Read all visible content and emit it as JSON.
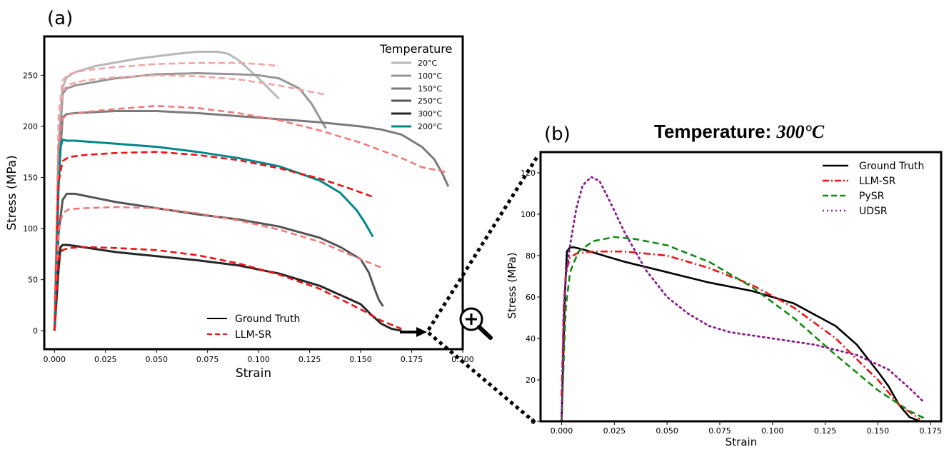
{
  "figure": {
    "panel_a_label": "(a)",
    "panel_b_label": "(b)",
    "panel_b_title_prefix": "Temperature: ",
    "panel_b_title_value": "300°C"
  },
  "colors": {
    "gt": [
      "#b8b8b8",
      "#969696",
      "#7a7a7a",
      "#555555",
      "#262626",
      "#00868b"
    ],
    "llm_light": "#f4a3a3",
    "llm_mid": "#f07a7a",
    "llm_strong": "#ee1111",
    "b_gt": "#000000",
    "b_llm": "#ee1111",
    "b_pysr": "#138a13",
    "b_udsr": "#8b1a8b"
  },
  "chart_data": [
    {
      "id": "a",
      "type": "line",
      "xlabel": "Strain",
      "ylabel": "Stress (MPa)",
      "xlim": [
        -0.005,
        0.2
      ],
      "ylim": [
        -18,
        288
      ],
      "xticks": [
        0.0,
        0.025,
        0.05,
        0.075,
        0.1,
        0.125,
        0.15,
        0.175,
        0.2
      ],
      "xtick_labels": [
        "0.000",
        "0.025",
        "0.050",
        "0.075",
        "0.100",
        "0.125",
        "0.150",
        "0.175",
        "0.200"
      ],
      "yticks": [
        0,
        50,
        100,
        150,
        200,
        250
      ],
      "ytick_labels": [
        "0",
        "50",
        "100",
        "150",
        "200",
        "250"
      ],
      "legend_title": "Temperature",
      "temperature_labels": [
        "20°C",
        "100°C",
        "150°C",
        "250°C",
        "300°C",
        "200°C"
      ],
      "method_legend": [
        "Ground Truth",
        "LLM-SR"
      ],
      "series": [
        {
          "name": "Ground Truth 20°C",
          "style": "gt",
          "color_index": 0,
          "x": [
            0.0,
            0.002,
            0.004,
            0.006,
            0.01,
            0.02,
            0.04,
            0.06,
            0.07,
            0.08,
            0.085,
            0.09,
            0.1,
            0.11
          ],
          "y": [
            0,
            180,
            238,
            248,
            253,
            259,
            266,
            271,
            273,
            273,
            271,
            265,
            247,
            227
          ]
        },
        {
          "name": "Ground Truth 100°C",
          "style": "gt",
          "color_index": 1,
          "x": [
            0.0,
            0.002,
            0.004,
            0.006,
            0.01,
            0.03,
            0.05,
            0.07,
            0.09,
            0.1,
            0.11,
            0.12,
            0.126,
            0.13,
            0.133
          ],
          "y": [
            0,
            170,
            232,
            237,
            240,
            247,
            251,
            252,
            251,
            250,
            247,
            237,
            222,
            208,
            198
          ]
        },
        {
          "name": "Ground Truth 150°C",
          "style": "gt",
          "color_index": 2,
          "x": [
            0.0,
            0.002,
            0.004,
            0.006,
            0.01,
            0.03,
            0.05,
            0.07,
            0.09,
            0.11,
            0.13,
            0.15,
            0.16,
            0.17,
            0.18,
            0.186,
            0.19,
            0.193
          ],
          "y": [
            0,
            150,
            209,
            212,
            213,
            215,
            215,
            213,
            210,
            207,
            204,
            200,
            197,
            192,
            180,
            168,
            154,
            141
          ]
        },
        {
          "name": "Ground Truth 250°C",
          "style": "gt",
          "color_index": 3,
          "x": [
            0.0,
            0.002,
            0.004,
            0.006,
            0.01,
            0.03,
            0.05,
            0.07,
            0.09,
            0.11,
            0.13,
            0.14,
            0.15,
            0.154,
            0.157,
            0.159,
            0.161
          ],
          "y": [
            0,
            95,
            128,
            134,
            134,
            126,
            120,
            114,
            109,
            102,
            91,
            82,
            70,
            57,
            40,
            30,
            24
          ]
        },
        {
          "name": "Ground Truth 300°C",
          "style": "gt",
          "color_index": 4,
          "x": [
            0.0,
            0.002,
            0.003,
            0.004,
            0.006,
            0.01,
            0.03,
            0.05,
            0.07,
            0.09,
            0.11,
            0.13,
            0.15,
            0.155,
            0.16,
            0.165,
            0.17
          ],
          "y": [
            0,
            60,
            82,
            84,
            84,
            83,
            77,
            73,
            69,
            64,
            56,
            44,
            26,
            16,
            7,
            2,
            0
          ]
        },
        {
          "name": "Ground Truth 200°C",
          "style": "gt",
          "color_index": 5,
          "x": [
            0.0,
            0.002,
            0.003,
            0.004,
            0.006,
            0.01,
            0.03,
            0.05,
            0.07,
            0.09,
            0.11,
            0.13,
            0.14,
            0.148,
            0.152,
            0.154,
            0.156
          ],
          "y": [
            0,
            140,
            180,
            187,
            186,
            186,
            183,
            180,
            175,
            169,
            161,
            147,
            135,
            118,
            106,
            99,
            92
          ]
        },
        {
          "name": "LLM-SR 20°C",
          "style": "llm",
          "alpha": "light",
          "x": [
            0.0,
            0.002,
            0.004,
            0.007,
            0.015,
            0.03,
            0.05,
            0.07,
            0.09,
            0.1,
            0.11
          ],
          "y": [
            0,
            210,
            245,
            251,
            255,
            258,
            261,
            262,
            262,
            261,
            259
          ]
        },
        {
          "name": "LLM-SR 100°C",
          "style": "llm",
          "alpha": "light",
          "x": [
            0.0,
            0.002,
            0.004,
            0.007,
            0.015,
            0.03,
            0.05,
            0.07,
            0.09,
            0.11,
            0.12,
            0.133
          ],
          "y": [
            0,
            200,
            235,
            241,
            245,
            248,
            250,
            249,
            246,
            240,
            236,
            231
          ]
        },
        {
          "name": "LLM-SR 150°C",
          "style": "llm",
          "alpha": "mid",
          "x": [
            0.0,
            0.002,
            0.004,
            0.007,
            0.015,
            0.03,
            0.05,
            0.07,
            0.09,
            0.11,
            0.13,
            0.15,
            0.17,
            0.18,
            0.193
          ],
          "y": [
            0,
            180,
            208,
            212,
            214,
            217,
            220,
            218,
            213,
            206,
            196,
            184,
            169,
            160,
            155
          ]
        },
        {
          "name": "LLM-SR 200°C",
          "style": "llm",
          "alpha": "strong",
          "x": [
            0.0,
            0.002,
            0.004,
            0.007,
            0.015,
            0.03,
            0.05,
            0.07,
            0.09,
            0.11,
            0.13,
            0.145,
            0.156
          ],
          "y": [
            0,
            145,
            166,
            170,
            172,
            174,
            175,
            172,
            167,
            159,
            149,
            139,
            131
          ]
        },
        {
          "name": "LLM-SR 250°C",
          "style": "llm",
          "alpha": "mid",
          "x": [
            0.0,
            0.002,
            0.004,
            0.007,
            0.015,
            0.03,
            0.05,
            0.07,
            0.09,
            0.11,
            0.13,
            0.15,
            0.161
          ],
          "y": [
            0,
            98,
            115,
            119,
            120,
            121,
            120,
            115,
            108,
            99,
            87,
            70,
            61
          ]
        },
        {
          "name": "LLM-SR 300°C",
          "style": "llm",
          "alpha": "strong",
          "x": [
            0.0,
            0.002,
            0.004,
            0.007,
            0.015,
            0.03,
            0.05,
            0.07,
            0.09,
            0.11,
            0.13,
            0.15,
            0.16,
            0.17
          ],
          "y": [
            0,
            70,
            79,
            81,
            82,
            81,
            79,
            74,
            66,
            55,
            41,
            21,
            10,
            2
          ]
        }
      ]
    },
    {
      "id": "b",
      "type": "line",
      "title": "Temperature: 300°C",
      "xlabel": "Strain",
      "ylabel": "Stress (MPa)",
      "xlim": [
        -0.01,
        0.18
      ],
      "ylim": [
        0,
        130
      ],
      "xticks": [
        0.0,
        0.025,
        0.05,
        0.075,
        0.1,
        0.125,
        0.15,
        0.175
      ],
      "xtick_labels": [
        "0.000",
        "0.025",
        "0.050",
        "0.075",
        "0.100",
        "0.125",
        "0.150",
        "0.175"
      ],
      "yticks": [
        0,
        20,
        40,
        60,
        80,
        100,
        120
      ],
      "ytick_labels": [
        "0",
        "20",
        "40",
        "60",
        "80",
        "100",
        "120"
      ],
      "legend": [
        "Ground Truth",
        "LLM-SR",
        "PySR",
        "UDSR"
      ],
      "series": [
        {
          "name": "Ground Truth",
          "style": "b_gt",
          "x": [
            0.0,
            0.0015,
            0.0025,
            0.004,
            0.006,
            0.01,
            0.03,
            0.05,
            0.07,
            0.09,
            0.1,
            0.11,
            0.13,
            0.14,
            0.15,
            0.155,
            0.16,
            0.165,
            0.17
          ],
          "y": [
            0,
            60,
            82,
            84,
            84,
            83,
            77,
            72,
            67,
            63,
            60,
            57,
            46,
            37,
            24,
            17,
            8,
            2,
            0
          ]
        },
        {
          "name": "LLM-SR",
          "style": "b_llm",
          "x": [
            0.0,
            0.001,
            0.002,
            0.004,
            0.007,
            0.015,
            0.03,
            0.05,
            0.07,
            0.09,
            0.11,
            0.13,
            0.15,
            0.16,
            0.17
          ],
          "y": [
            12,
            55,
            72,
            79,
            81,
            82,
            82,
            80,
            74,
            66,
            55,
            40,
            20,
            8,
            1
          ]
        },
        {
          "name": "PySR",
          "style": "b_pysr",
          "x": [
            0.0,
            0.001,
            0.002,
            0.004,
            0.008,
            0.015,
            0.025,
            0.035,
            0.05,
            0.07,
            0.09,
            0.11,
            0.13,
            0.15,
            0.165,
            0.173
          ],
          "y": [
            0,
            30,
            55,
            72,
            82,
            87,
            89,
            88,
            85,
            77,
            65,
            50,
            32,
            15,
            5,
            1
          ]
        },
        {
          "name": "UDSR",
          "style": "b_udsr",
          "x": [
            0.0,
            0.001,
            0.002,
            0.004,
            0.007,
            0.01,
            0.014,
            0.018,
            0.022,
            0.03,
            0.04,
            0.05,
            0.06,
            0.07,
            0.08,
            0.1,
            0.12,
            0.14,
            0.155,
            0.165,
            0.172
          ],
          "y": [
            0,
            55,
            70,
            85,
            103,
            114,
            118,
            116,
            108,
            91,
            73,
            60,
            52,
            46,
            43,
            40,
            37,
            32,
            25,
            16,
            9
          ]
        }
      ]
    }
  ]
}
